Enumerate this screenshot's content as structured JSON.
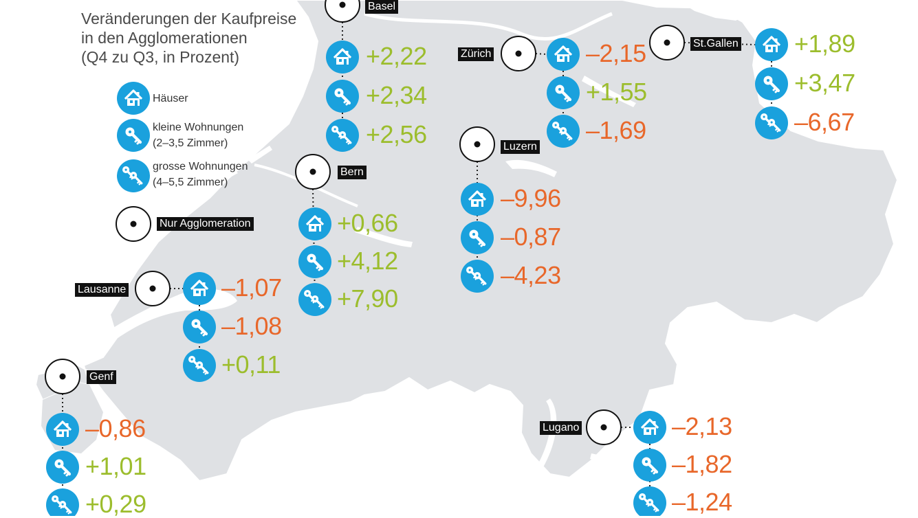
{
  "title_lines": [
    "Veränderungen der Kaufpreise",
    "in den Agglomerationen",
    "(Q4 zu Q3, in Prozent)"
  ],
  "colors": {
    "map_fill": "#dfe1e4",
    "water": "#ffffff",
    "icon_blue": "#1aa1dd",
    "positive": "#9cbd2d",
    "negative": "#e8672a",
    "label_bg": "#111111"
  },
  "legend": {
    "house": "Häuser",
    "small_line1": "kleine Wohnungen",
    "small_line2": "(2–3,5 Zimmer)",
    "large_line1": "grosse Wohnungen",
    "large_line2": "(4–5,5 Zimmer)",
    "agglo": "Nur Agglomeration"
  },
  "icons": {
    "house": "house-icon",
    "small": "key-icon",
    "large": "double-key-icon",
    "marker": "city-marker-icon"
  },
  "cities": [
    {
      "id": "basel",
      "name": "Basel",
      "values": [
        "+2,22",
        "+2,34",
        "+2,56"
      ]
    },
    {
      "id": "zuerich",
      "name": "Zürich",
      "values": [
        "–2,15",
        "+1,55",
        "–1,69"
      ]
    },
    {
      "id": "stgallen",
      "name": "St.Gallen",
      "values": [
        "+1,89",
        "+3,47",
        "–6,67"
      ]
    },
    {
      "id": "luzern",
      "name": "Luzern",
      "values": [
        "–9,96",
        "–0,87",
        "–4,23"
      ]
    },
    {
      "id": "bern",
      "name": "Bern",
      "values": [
        "+0,66",
        "+4,12",
        "+7,90"
      ]
    },
    {
      "id": "lausanne",
      "name": "Lausanne",
      "values": [
        "–1,07",
        "–1,08",
        "+0,11"
      ]
    },
    {
      "id": "genf",
      "name": "Genf",
      "values": [
        "–0,86",
        "+1,01",
        "+0,29"
      ]
    },
    {
      "id": "lugano",
      "name": "Lugano",
      "values": [
        "–2,13",
        "–1,82",
        "–1,24"
      ]
    }
  ]
}
